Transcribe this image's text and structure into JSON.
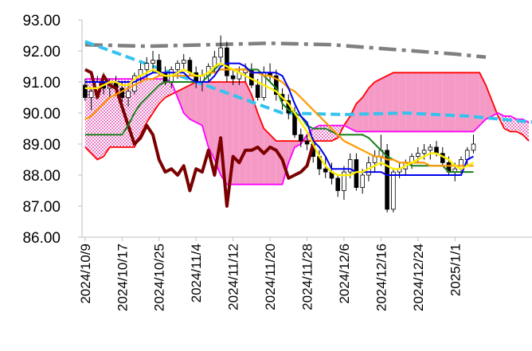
{
  "chart_data": {
    "type": "candlestick",
    "title": "",
    "xlabel": "",
    "ylabel": "",
    "ylim": [
      86.0,
      93.0
    ],
    "y_ticks": [
      "86.00",
      "87.00",
      "88.00",
      "89.00",
      "90.00",
      "91.00",
      "92.00",
      "93.00"
    ],
    "x_tick_labels": [
      "2024/10/9",
      "2024/10/17",
      "2024/10/25",
      "2024/11/4",
      "2024/11/12",
      "2024/11/20",
      "2024/11/28",
      "2024/12/6",
      "2024/12/16",
      "2024/12/24",
      "2025/1/1"
    ],
    "x_tick_index": [
      0,
      6,
      12,
      18,
      24,
      30,
      36,
      42,
      48,
      54,
      60
    ],
    "n_slots": 73,
    "grid": false,
    "legend": "none",
    "colors": {
      "cloud_bull": "#f59ac6",
      "cloud_bear_dots": "#d81b9a",
      "span_a": "#ff0000",
      "span_b": "#ff00ff",
      "lagging": "#7b0000",
      "tenkan": "#0000ee",
      "kijun": "#1a7f1a",
      "ma_short": "#ffee00",
      "ma_long": "#ff9900",
      "trend_dashed": "#33c3ee",
      "trend_dashdot": "#808080",
      "candle_up": "#ffffff",
      "candle_down": "#000000"
    },
    "candles": [
      [
        90.9,
        91.1,
        90.4,
        90.5
      ],
      [
        90.5,
        90.8,
        90.1,
        90.7
      ],
      [
        90.7,
        91.2,
        90.5,
        91.0
      ],
      [
        91.0,
        91.3,
        90.6,
        90.8
      ],
      [
        90.8,
        91.1,
        90.5,
        91.0
      ],
      [
        91.0,
        91.2,
        90.6,
        90.8
      ],
      [
        90.8,
        91.0,
        90.2,
        90.5
      ],
      [
        90.5,
        90.9,
        90.2,
        90.7
      ],
      [
        90.7,
        91.3,
        90.6,
        91.2
      ],
      [
        91.2,
        91.6,
        91.0,
        91.4
      ],
      [
        91.4,
        91.8,
        91.1,
        91.6
      ],
      [
        91.6,
        92.0,
        91.3,
        91.7
      ],
      [
        91.7,
        91.9,
        91.2,
        91.3
      ],
      [
        91.3,
        91.5,
        90.9,
        91.0
      ],
      [
        91.0,
        91.5,
        90.8,
        91.4
      ],
      [
        91.4,
        91.7,
        91.1,
        91.6
      ],
      [
        91.6,
        91.9,
        91.4,
        91.7
      ],
      [
        91.7,
        91.8,
        91.2,
        91.3
      ],
      [
        91.3,
        91.5,
        90.8,
        91.0
      ],
      [
        91.0,
        91.4,
        90.7,
        91.2
      ],
      [
        91.2,
        91.6,
        91.0,
        91.5
      ],
      [
        91.5,
        92.0,
        91.3,
        91.8
      ],
      [
        91.8,
        92.5,
        91.6,
        92.1
      ],
      [
        92.1,
        92.3,
        91.0,
        91.2
      ],
      [
        91.2,
        91.4,
        90.9,
        91.1
      ],
      [
        91.1,
        91.5,
        90.9,
        91.3
      ],
      [
        91.3,
        91.6,
        91.0,
        91.4
      ],
      [
        91.4,
        91.6,
        90.8,
        90.9
      ],
      [
        90.9,
        91.1,
        90.4,
        90.5
      ],
      [
        90.5,
        91.5,
        90.4,
        91.3
      ],
      [
        91.3,
        91.6,
        91.0,
        91.2
      ],
      [
        91.2,
        91.4,
        90.4,
        90.6
      ],
      [
        90.6,
        90.8,
        90.1,
        90.4
      ],
      [
        90.4,
        90.6,
        89.8,
        90.0
      ],
      [
        90.0,
        90.2,
        89.2,
        89.3
      ],
      [
        89.3,
        89.5,
        88.9,
        89.1
      ],
      [
        89.1,
        89.3,
        88.8,
        89.0
      ],
      [
        89.0,
        89.2,
        88.4,
        88.6
      ],
      [
        88.6,
        88.8,
        88.0,
        88.2
      ],
      [
        88.2,
        88.6,
        87.9,
        88.1
      ],
      [
        88.1,
        88.4,
        87.7,
        87.9
      ],
      [
        87.9,
        88.0,
        87.3,
        87.5
      ],
      [
        87.5,
        88.3,
        87.2,
        88.1
      ],
      [
        88.1,
        88.7,
        87.9,
        88.5
      ],
      [
        88.5,
        88.7,
        87.5,
        87.6
      ],
      [
        87.6,
        88.2,
        87.4,
        88.0
      ],
      [
        88.0,
        88.6,
        87.8,
        88.4
      ],
      [
        88.4,
        88.8,
        88.1,
        88.6
      ],
      [
        88.6,
        89.3,
        88.3,
        88.8
      ],
      [
        88.8,
        89.0,
        86.8,
        86.9
      ],
      [
        86.9,
        88.2,
        86.8,
        88.1
      ],
      [
        88.1,
        88.4,
        87.9,
        88.2
      ],
      [
        88.2,
        88.5,
        88.0,
        88.4
      ],
      [
        88.4,
        88.7,
        88.2,
        88.6
      ],
      [
        88.6,
        88.9,
        88.4,
        88.7
      ],
      [
        88.7,
        89.0,
        88.5,
        88.8
      ],
      [
        88.8,
        89.0,
        88.5,
        88.9
      ],
      [
        88.9,
        89.1,
        88.6,
        88.7
      ],
      [
        88.7,
        88.9,
        88.3,
        88.4
      ],
      [
        88.4,
        88.6,
        88.0,
        88.1
      ],
      [
        88.1,
        88.4,
        87.8,
        88.2
      ],
      [
        88.2,
        88.6,
        88.0,
        88.5
      ],
      [
        88.5,
        88.9,
        88.3,
        88.8
      ],
      [
        88.8,
        89.3,
        88.7,
        89.0
      ]
    ],
    "series": [
      {
        "id": "tenkan",
        "values": [
          91.0,
          91.0,
          91.0,
          91.0,
          91.0,
          91.0,
          91.0,
          91.0,
          91.0,
          91.1,
          91.2,
          91.3,
          91.3,
          91.3,
          91.3,
          91.3,
          91.3,
          91.1,
          91.0,
          91.0,
          91.0,
          91.2,
          91.5,
          91.6,
          91.6,
          91.6,
          91.5,
          91.3,
          91.3,
          91.3,
          91.3,
          91.3,
          91.2,
          90.8,
          90.3,
          89.9,
          89.7,
          89.1,
          88.9,
          88.6,
          88.2,
          88.2,
          88.2,
          88.2,
          88.1,
          88.1,
          88.1,
          88.1,
          88.1,
          88.0,
          88.0,
          88.0,
          88.0,
          88.0,
          88.0,
          88.0,
          88.0,
          88.0,
          88.0,
          88.0,
          88.0,
          88.0,
          88.5,
          88.6
        ]
      },
      {
        "id": "kijun",
        "values": [
          89.3,
          89.3,
          89.3,
          89.3,
          89.3,
          89.3,
          89.3,
          89.6,
          90.0,
          90.3,
          90.5,
          90.7,
          90.9,
          91.0,
          91.0,
          91.0,
          91.0,
          91.0,
          91.0,
          91.0,
          91.2,
          91.4,
          91.6,
          91.5,
          91.4,
          91.4,
          91.4,
          91.4,
          91.4,
          91.2,
          91.0,
          90.8,
          90.3,
          90.1,
          90.0,
          89.9,
          89.6,
          89.5,
          89.5,
          89.5,
          89.4,
          89.3,
          89.3,
          89.3,
          89.3,
          89.3,
          89.2,
          89.0,
          88.8,
          88.6,
          88.5,
          88.4,
          88.4,
          88.3,
          88.3,
          88.3,
          88.3,
          88.3,
          88.3,
          88.1,
          88.1,
          88.1,
          88.1,
          88.1
        ]
      },
      {
        "id": "ma_short",
        "values": [
          90.8,
          90.8,
          90.8,
          90.9,
          91.0,
          91.0,
          90.9,
          90.9,
          91.1,
          91.2,
          91.3,
          91.4,
          91.3,
          91.2,
          91.2,
          91.3,
          91.4,
          91.3,
          91.2,
          91.2,
          91.3,
          91.5,
          91.6,
          91.5,
          91.4,
          91.3,
          91.2,
          91.1,
          91.0,
          90.9,
          90.8,
          90.7,
          90.5,
          90.3,
          90.0,
          89.7,
          89.4,
          89.0,
          88.6,
          88.3,
          88.1,
          88.0,
          88.0,
          88.0,
          88.1,
          88.1,
          88.2,
          88.3,
          88.4,
          88.3,
          88.2,
          88.2,
          88.3,
          88.4,
          88.5,
          88.6,
          88.7,
          88.7,
          88.6,
          88.5,
          88.3,
          88.2,
          88.3,
          88.4
        ]
      },
      {
        "id": "ma_long",
        "values": [
          89.8,
          89.9,
          90.1,
          90.3,
          90.5,
          90.6,
          90.7,
          90.8,
          90.9,
          91.0,
          91.1,
          91.1,
          91.2,
          91.2,
          91.2,
          91.2,
          91.2,
          91.2,
          91.2,
          91.2,
          91.3,
          91.3,
          91.4,
          91.4,
          91.4,
          91.4,
          91.4,
          91.3,
          91.3,
          91.2,
          91.2,
          91.1,
          91.0,
          90.8,
          90.7,
          90.5,
          90.3,
          90.1,
          89.9,
          89.7,
          89.5,
          89.3,
          89.1,
          89.0,
          88.9,
          88.8,
          88.7,
          88.6,
          88.6,
          88.5,
          88.5,
          88.4,
          88.4,
          88.4,
          88.4,
          88.4,
          88.3,
          88.3,
          88.3,
          88.3,
          88.3,
          88.3,
          88.3,
          88.3
        ]
      },
      {
        "id": "lagging",
        "values": [
          91.4,
          91.3,
          90.5,
          91.2,
          90.9,
          90.8,
          90.2,
          89.6,
          89.0,
          89.2,
          89.6,
          89.3,
          88.5,
          88.1,
          88.2,
          88.0,
          88.3,
          87.5,
          88.2,
          88.1,
          88.8,
          88.0,
          89.2,
          87.0,
          88.6,
          88.4,
          88.8,
          88.8,
          88.9,
          88.7,
          88.9,
          88.8,
          88.5,
          87.9,
          88.0,
          88.1,
          88.3,
          89.0
        ]
      },
      {
        "id": "span_a",
        "values": [
          88.9,
          88.7,
          88.5,
          88.6,
          88.9,
          88.9,
          88.9,
          88.9,
          88.9,
          89.3,
          89.7,
          90.0,
          90.3,
          90.5,
          90.6,
          90.7,
          90.8,
          90.9,
          91.0,
          91.0,
          91.0,
          91.0,
          91.0,
          91.0,
          91.0,
          91.0,
          91.0,
          90.6,
          90.0,
          89.5,
          89.3,
          89.1,
          89.1,
          89.1,
          89.1,
          89.1,
          89.1,
          89.1,
          89.1,
          89.1,
          89.1,
          89.2,
          89.6,
          89.9,
          90.3,
          90.5,
          90.8,
          91.0,
          91.1,
          91.2,
          91.3,
          91.3,
          91.3,
          91.3,
          91.3,
          91.3,
          91.3,
          91.3,
          91.3,
          91.3,
          91.3,
          91.3,
          91.3,
          91.3,
          91.3,
          90.9,
          90.4,
          89.9,
          89.5,
          89.4,
          89.4,
          89.3,
          89.1
        ]
      },
      {
        "id": "span_b",
        "values": [
          91.1,
          91.1,
          91.1,
          91.1,
          91.1,
          91.1,
          91.1,
          91.1,
          91.1,
          91.1,
          91.1,
          91.1,
          91.1,
          91.1,
          91.0,
          90.5,
          90.0,
          89.8,
          89.7,
          89.6,
          88.9,
          88.5,
          88.0,
          87.7,
          87.7,
          87.7,
          87.7,
          87.7,
          87.7,
          87.7,
          87.7,
          87.7,
          87.7,
          88.4,
          88.9,
          89.0,
          89.3,
          89.5,
          89.6,
          89.6,
          89.6,
          89.6,
          89.6,
          89.5,
          89.4,
          89.4,
          89.4,
          89.4,
          89.4,
          89.4,
          89.4,
          89.4,
          89.4,
          89.4,
          89.4,
          89.4,
          89.4,
          89.4,
          89.4,
          89.4,
          89.4,
          89.4,
          89.4,
          89.4,
          89.6,
          89.8,
          89.9,
          90.0,
          89.9,
          89.9,
          89.8,
          89.8,
          89.7
        ]
      },
      {
        "id": "trend_dashed",
        "points": [
          [
            0,
            92.3
          ],
          [
            32,
            90.0
          ],
          [
            42,
            89.95
          ],
          [
            52,
            90.0
          ],
          [
            62,
            89.9
          ],
          [
            73,
            89.7
          ]
        ]
      },
      {
        "id": "trend_dashdot",
        "points": [
          [
            0,
            92.2
          ],
          [
            10,
            92.15
          ],
          [
            20,
            92.2
          ],
          [
            30,
            92.25
          ],
          [
            40,
            92.2
          ],
          [
            50,
            92.05
          ],
          [
            60,
            91.9
          ],
          [
            65,
            91.8
          ]
        ]
      }
    ]
  }
}
